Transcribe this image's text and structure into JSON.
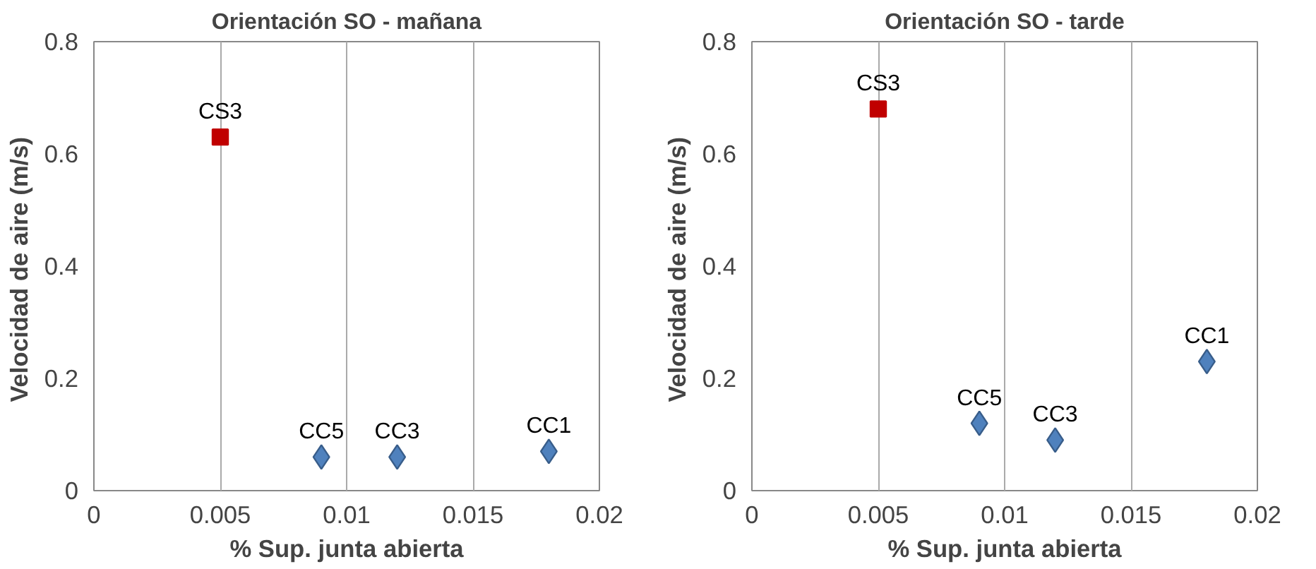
{
  "chart_data": [
    {
      "type": "scatter",
      "title": "Orientación SO - mañana",
      "xlabel": "% Sup. junta abierta",
      "ylabel": "Velocidad de aire  (m/s)",
      "xlim": [
        0,
        0.02
      ],
      "xticks": [
        0,
        0.005,
        0.01,
        0.015,
        0.02
      ],
      "ylim": [
        0,
        0.8
      ],
      "yticks": [
        0,
        0.2,
        0.4,
        0.6,
        0.8
      ],
      "grid": "x",
      "series": [
        {
          "color": "#c00000",
          "marker": "square",
          "x": [
            0.005
          ],
          "values": [
            0.63
          ]
        },
        {
          "color": "#4f81bd",
          "marker": "diamond",
          "x": [
            0.009,
            0.012,
            0.018
          ],
          "values": [
            0.06,
            0.06,
            0.07
          ]
        }
      ],
      "annotations": [
        {
          "text": "CS3",
          "x": 0.005,
          "y": 0.63
        },
        {
          "text": "CC5",
          "x": 0.009,
          "y": 0.06
        },
        {
          "text": "CC3",
          "x": 0.012,
          "y": 0.06
        },
        {
          "text": "CC1",
          "x": 0.018,
          "y": 0.07
        }
      ]
    },
    {
      "type": "scatter",
      "title": "Orientación SO - tarde",
      "xlabel": "% Sup. junta abierta",
      "ylabel": "Velocidad de aire  (m/s)",
      "xlim": [
        0,
        0.02
      ],
      "xticks": [
        0,
        0.005,
        0.01,
        0.015,
        0.02
      ],
      "ylim": [
        0,
        0.8
      ],
      "yticks": [
        0,
        0.2,
        0.4,
        0.6,
        0.8
      ],
      "grid": "x",
      "series": [
        {
          "color": "#c00000",
          "marker": "square",
          "x": [
            0.005
          ],
          "values": [
            0.68
          ]
        },
        {
          "color": "#4f81bd",
          "marker": "diamond",
          "x": [
            0.009,
            0.012,
            0.018
          ],
          "values": [
            0.12,
            0.09,
            0.23
          ]
        }
      ],
      "annotations": [
        {
          "text": "CS3",
          "x": 0.005,
          "y": 0.68
        },
        {
          "text": "CC5",
          "x": 0.009,
          "y": 0.12
        },
        {
          "text": "CC3",
          "x": 0.012,
          "y": 0.09
        },
        {
          "text": "CC1",
          "x": 0.018,
          "y": 0.23
        }
      ]
    }
  ]
}
